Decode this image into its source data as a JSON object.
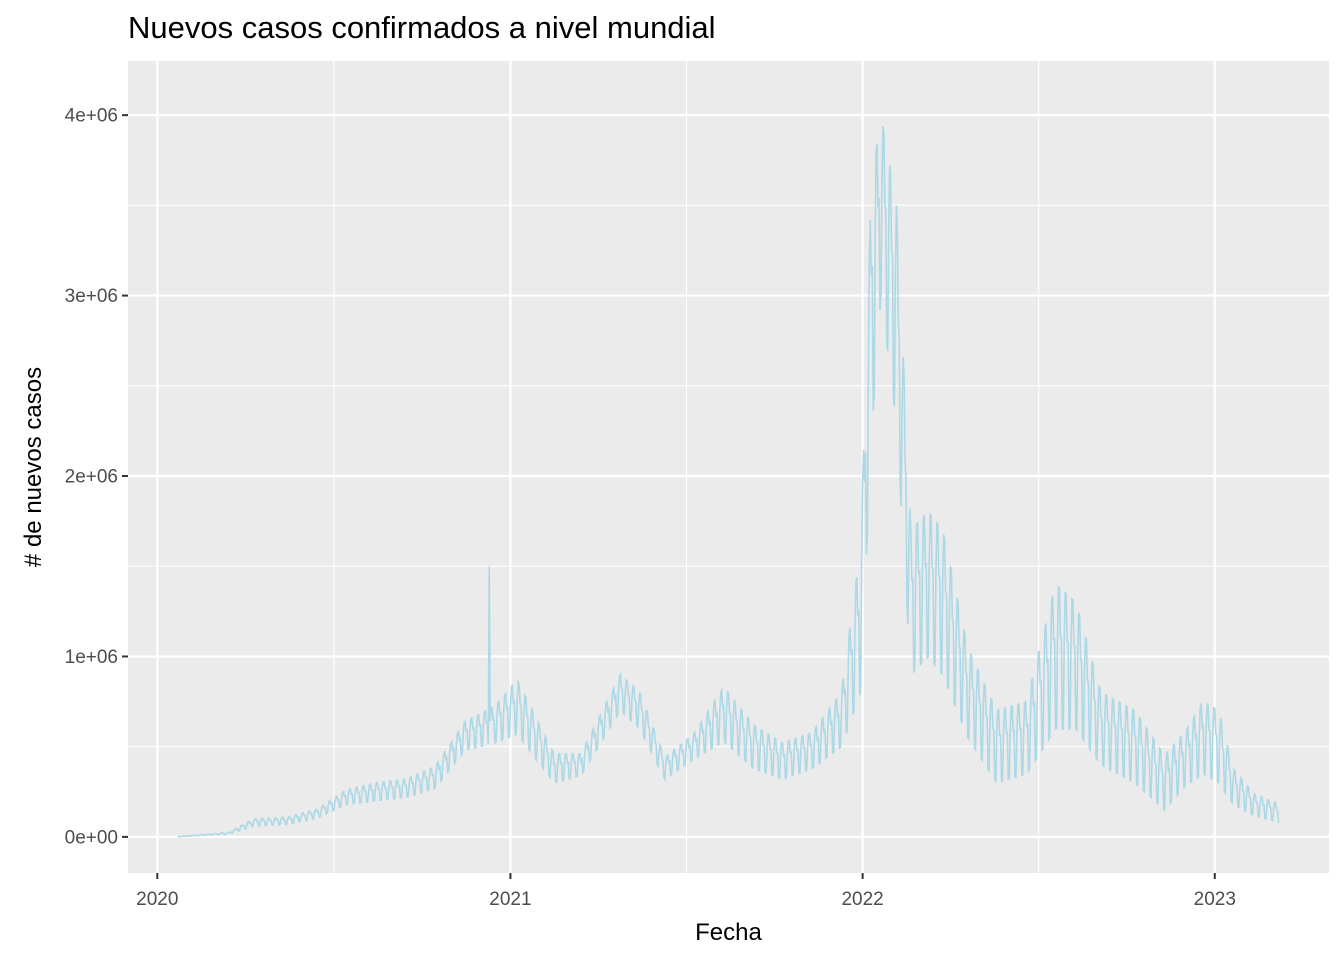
{
  "chart_data": {
    "type": "line",
    "title": "Nuevos casos confirmados a nivel mundial",
    "xlabel": "Fecha",
    "ylabel": "# de nuevos casos",
    "x_ticks": [
      "2020",
      "2021",
      "2022",
      "2023"
    ],
    "y_ticks": [
      "0e+00",
      "1e+06",
      "2e+06",
      "3e+06",
      "4e+06"
    ],
    "x_range": [
      "2020-01-22",
      "2023-03-09"
    ],
    "ylim": [
      -200000,
      4300000
    ],
    "grid": true,
    "panel_background": "#EBEBEB",
    "grid_color": "#FFFFFF",
    "series": [
      {
        "color": "#ADD8E6",
        "approximate_daily_pattern": "weekly oscillation between low and high values around the trend",
        "trend_x": [
          "2020-01-22",
          "2020-03-15",
          "2020-04-10",
          "2020-05-15",
          "2020-06-15",
          "2020-07-15",
          "2020-08-15",
          "2020-09-15",
          "2020-10-15",
          "2020-11-15",
          "2020-12-15",
          "2021-01-08",
          "2021-02-15",
          "2021-03-15",
          "2021-04-25",
          "2021-05-15",
          "2021-06-10",
          "2021-07-10",
          "2021-08-10",
          "2021-09-10",
          "2021-10-10",
          "2021-11-10",
          "2021-12-10",
          "2021-12-30",
          "2022-01-10",
          "2022-01-20",
          "2022-02-05",
          "2022-02-20",
          "2022-03-10",
          "2022-03-25",
          "2022-04-20",
          "2022-05-20",
          "2022-06-20",
          "2022-07-20",
          "2022-08-10",
          "2022-09-05",
          "2022-10-10",
          "2022-11-10",
          "2022-12-01",
          "2022-12-20",
          "2023-01-05",
          "2023-01-20",
          "2023-02-10",
          "2023-03-09"
        ],
        "trend_y": [
          1000,
          20000,
          80000,
          90000,
          130000,
          220000,
          250000,
          270000,
          330000,
          560000,
          620000,
          720000,
          380000,
          400000,
          800000,
          700000,
          380000,
          500000,
          680000,
          500000,
          420000,
          480000,
          650000,
          1200000,
          2900000,
          3500000,
          2900000,
          1300000,
          1400000,
          1300000,
          800000,
          500000,
          550000,
          1000000,
          950000,
          600000,
          500000,
          300000,
          430000,
          550000,
          500000,
          280000,
          180000,
          130000
        ],
        "trend_amplitude": [
          0,
          5000,
          20000,
          20000,
          25000,
          40000,
          50000,
          50000,
          60000,
          80000,
          100000,
          150000,
          80000,
          60000,
          100000,
          100000,
          60000,
          70000,
          150000,
          120000,
          100000,
          100000,
          150000,
          400000,
          700000,
          500000,
          600000,
          400000,
          400000,
          400000,
          250000,
          200000,
          200000,
          400000,
          350000,
          200000,
          200000,
          150000,
          150000,
          200000,
          200000,
          100000,
          60000,
          50000
        ]
      }
    ],
    "annotation": {
      "x": "2020-12-10",
      "y": 1500000,
      "label": ""
    }
  }
}
